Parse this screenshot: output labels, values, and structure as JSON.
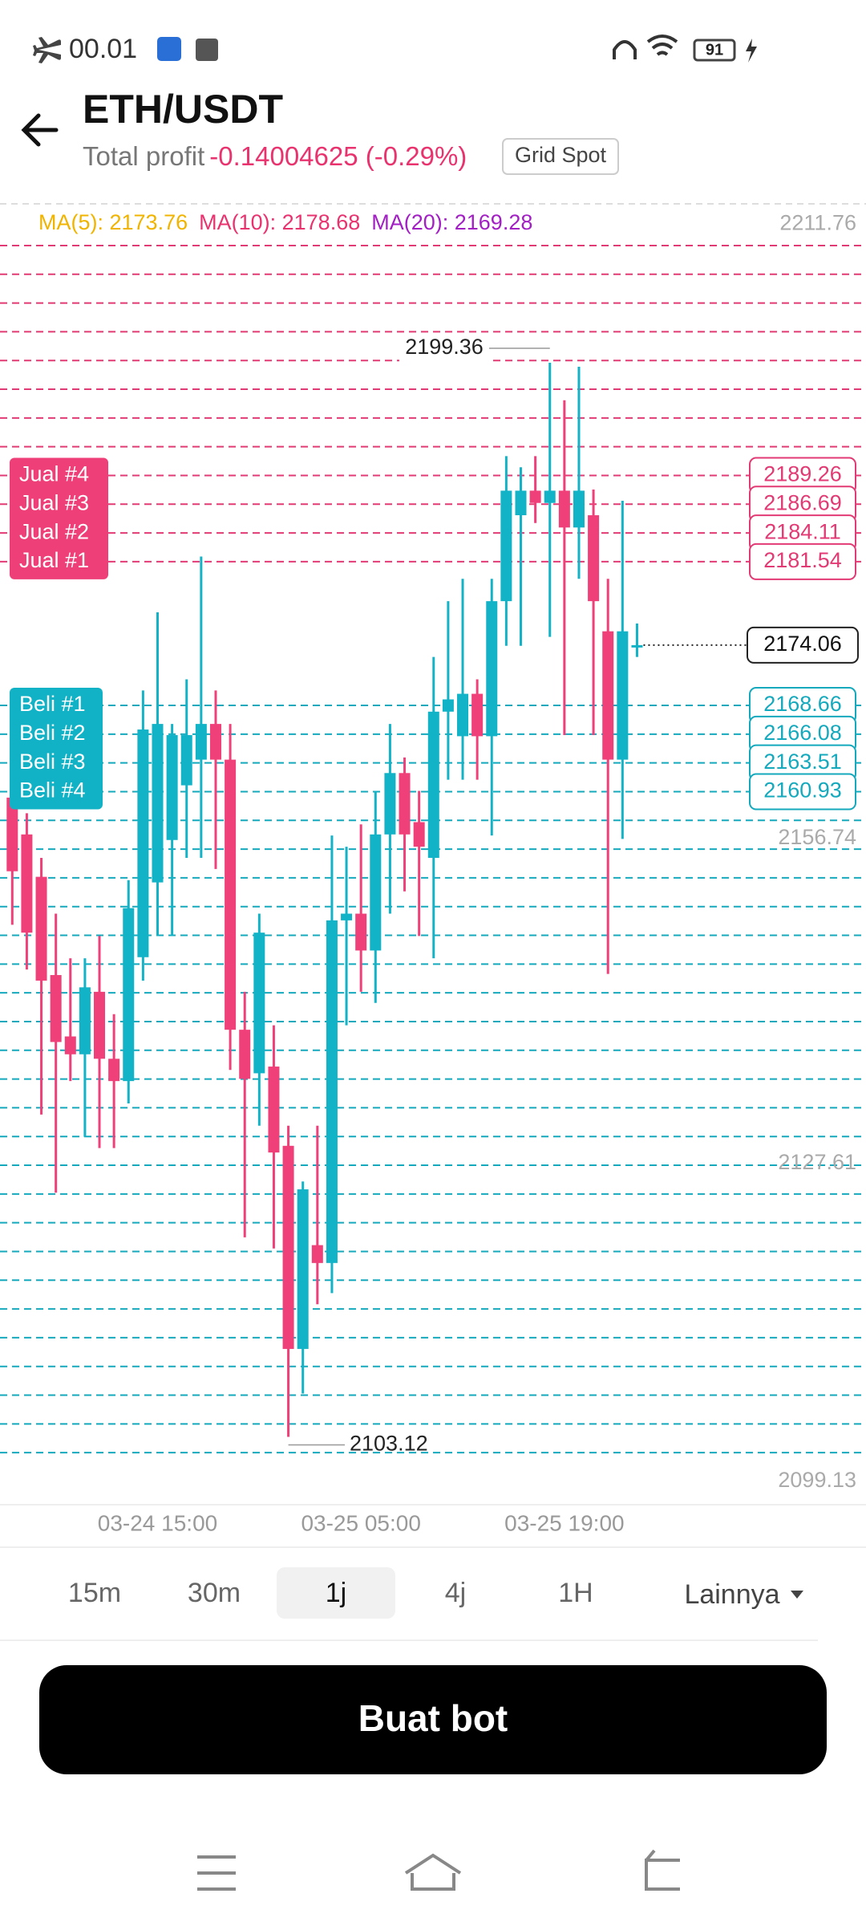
{
  "status_bar": {
    "time": "00.01",
    "battery": "91"
  },
  "header": {
    "title": "ETH/USDT",
    "profit_label": "Total profit",
    "profit_value": "-0.14004625 (-0.29%)",
    "badge": "Grid Spot"
  },
  "chart_data": {
    "type": "candlestick",
    "moving_averages": [
      {
        "label": "MA(5): 2173.76",
        "color": "#f0b400"
      },
      {
        "label": "MA(10): 2178.68",
        "color": "#e8336f"
      },
      {
        "label": "MA(20): 2169.28",
        "color": "#a21fc4"
      }
    ],
    "categories": [
      null,
      null,
      null,
      null,
      null,
      null,
      null,
      null,
      null,
      null,
      "03-24 15:00",
      null,
      null,
      null,
      null,
      null,
      null,
      null,
      null,
      null,
      null,
      null,
      null,
      null,
      "03-25 05:00",
      null,
      null,
      null,
      null,
      null,
      null,
      null,
      null,
      null,
      null,
      null,
      null,
      null,
      "03-25 19:00",
      null,
      null,
      null,
      null,
      null
    ],
    "open": [
      2160.4,
      2157.1,
      2153.3,
      2144.5,
      2139.0,
      2137.4,
      2143.0,
      2137.0,
      2135.0,
      2146.1,
      2152.8,
      2156.6,
      2161.5,
      2163.8,
      2167.0,
      2163.8,
      2139.6,
      2135.7,
      2136.3,
      2129.2,
      2111.0,
      2120.3,
      2118.7,
      2149.4,
      2150.0,
      2146.7,
      2157.1,
      2162.6,
      2158.2,
      2155.0,
      2168.1,
      2165.9,
      2169.7,
      2165.9,
      2178.0,
      2185.7,
      2187.9,
      2186.8,
      2187.9,
      2184.6,
      2185.7,
      2175.3,
      2163.8,
      2174.0
    ],
    "high": [
      2162.0,
      2159.0,
      2155.0,
      2150.0,
      2146.0,
      2146.0,
      2148.0,
      2141.0,
      2153.0,
      2170.0,
      2177.0,
      2167.0,
      2171.0,
      2182.0,
      2170.0,
      2167.0,
      2143.0,
      2150.0,
      2140.0,
      2131.0,
      2126.0,
      2131.0,
      2157.0,
      2156.0,
      2158.0,
      2161.0,
      2167.0,
      2164.0,
      2161.0,
      2173.0,
      2178.0,
      2180.0,
      2171.0,
      2180.0,
      2191.0,
      2190.0,
      2191.0,
      2199.36,
      2196.0,
      2199.0,
      2188.0,
      2180.0,
      2187.0,
      2176.0
    ],
    "low": [
      2149.0,
      2145.0,
      2132.0,
      2125.0,
      2135.0,
      2130.0,
      2129.0,
      2129.0,
      2133.0,
      2144.0,
      2148.0,
      2148.0,
      2155.0,
      2155.0,
      2154.0,
      2136.0,
      2121.0,
      2131.0,
      2120.0,
      2103.12,
      2107.0,
      2115.0,
      2116.0,
      2140.0,
      2143.0,
      2142.0,
      2150.0,
      2152.0,
      2148.0,
      2146.0,
      2162.0,
      2162.0,
      2162.0,
      2157.0,
      2174.0,
      2174.0,
      2185.0,
      2174.8,
      2166.0,
      2180.0,
      2166.0,
      2144.6,
      2156.7,
      2173.0
    ],
    "close": [
      2153.8,
      2148.3,
      2144.0,
      2138.5,
      2137.4,
      2143.4,
      2137.0,
      2135.0,
      2150.5,
      2166.5,
      2167.0,
      2166.0,
      2166.0,
      2167.0,
      2163.8,
      2139.6,
      2135.2,
      2148.3,
      2128.6,
      2111.0,
      2125.3,
      2118.7,
      2149.4,
      2150.0,
      2146.7,
      2157.1,
      2162.6,
      2157.1,
      2156.0,
      2168.1,
      2169.2,
      2169.7,
      2165.9,
      2178.0,
      2187.9,
      2187.9,
      2186.8,
      2187.9,
      2184.6,
      2187.9,
      2178.0,
      2163.8,
      2175.3,
      2174.06
    ],
    "up_color": "#13b3c7",
    "down_color": "#f0407a",
    "ylim": [
      2099.13,
      2211.76
    ],
    "yticks": [
      2099.13,
      2127.61,
      2156.74,
      2211.76
    ],
    "sell_grid": [
      2191.84,
      2194.41,
      2196.99,
      2199.56,
      2202.14,
      2204.71,
      2207.29,
      2209.86
    ],
    "buy_grid": [
      2158.36,
      2155.78,
      2153.21,
      2150.63,
      2148.06,
      2145.48,
      2142.91,
      2140.33,
      2137.76,
      2135.18,
      2132.61,
      2130.03,
      2127.46,
      2124.88,
      2122.31,
      2119.73,
      2117.16,
      2114.58,
      2112.01,
      2109.43,
      2106.86,
      2104.28,
      2101.71
    ],
    "sell_orders": [
      {
        "label": "Jual #4",
        "price": 2189.26
      },
      {
        "label": "Jual #3",
        "price": 2186.69
      },
      {
        "label": "Jual #2",
        "price": 2184.11
      },
      {
        "label": "Jual #1",
        "price": 2181.54
      }
    ],
    "buy_orders": [
      {
        "label": "Beli #1",
        "price": 2168.66
      },
      {
        "label": "Beli #2",
        "price": 2166.08
      },
      {
        "label": "Beli #3",
        "price": 2163.51
      },
      {
        "label": "Beli #4",
        "price": 2160.93
      }
    ],
    "current_price": 2174.06,
    "max_label": 2199.36,
    "min_label": 2103.12
  },
  "tabs": [
    "15m",
    "30m",
    "1j",
    "4j",
    "1H"
  ],
  "selected_tab": 2,
  "more_tab": "Lainnya",
  "button": "Buat bot"
}
